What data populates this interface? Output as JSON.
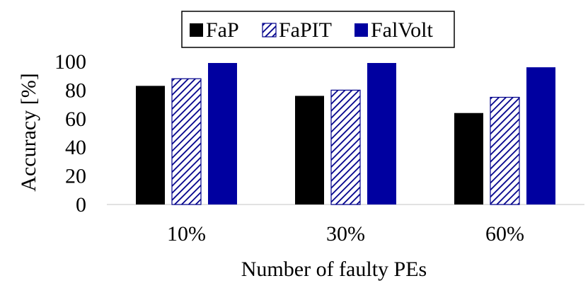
{
  "chart_data": {
    "type": "bar",
    "categories": [
      "10%",
      "30%",
      "60%"
    ],
    "series": [
      {
        "name": "FaP",
        "values": [
          83,
          76,
          64
        ],
        "color": "#000000",
        "fill": "solid"
      },
      {
        "name": "FaPIT",
        "values": [
          88,
          80,
          75
        ],
        "color": "#00008b",
        "fill": "hatched"
      },
      {
        "name": "FalVolt",
        "values": [
          99,
          99,
          96
        ],
        "color": "#0000a0",
        "fill": "solid"
      }
    ],
    "title": "",
    "xlabel": "Number of faulty PEs",
    "ylabel": "Accuracy [%]",
    "ylim": [
      0,
      100
    ],
    "yticks": [
      0,
      20,
      40,
      60,
      80,
      100
    ],
    "grid": false,
    "legend_position": "top-center"
  }
}
